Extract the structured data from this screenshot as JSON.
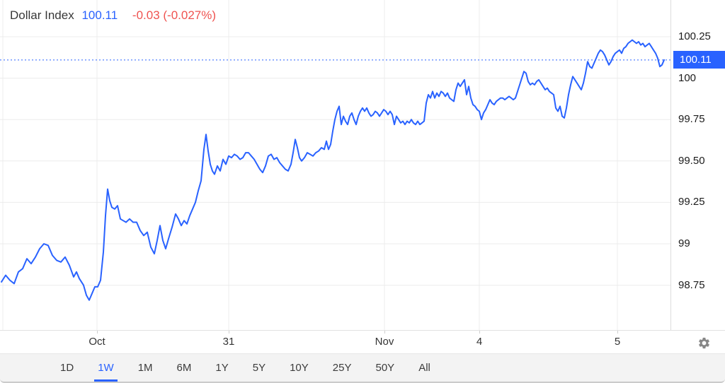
{
  "header": {
    "title": "Dollar Index",
    "price": "100.11",
    "change": "-0.03 (-0.027%)"
  },
  "colors": {
    "accent_blue": "#2962FF",
    "change_red": "#EF5350",
    "grid": "#ECECEC",
    "axis_border": "#DCDCDC",
    "label_dark": "#1C1C1C",
    "tab_strip_bg": "#F3F3F3"
  },
  "y_axis": {
    "labels": [
      "100.25",
      "100",
      "99.75",
      "99.50",
      "99.25",
      "99",
      "98.75"
    ],
    "values": [
      100.25,
      100,
      99.75,
      99.5,
      99.25,
      99,
      98.75
    ],
    "badge": {
      "text": "100.11",
      "value": 100.11
    }
  },
  "x_axis": {
    "labels": [
      "Oct",
      "31",
      "Nov",
      "4",
      "5"
    ],
    "positions": [
      137,
      323,
      543,
      677,
      872
    ],
    "extra_gridlines": [
      4
    ]
  },
  "toolbar": {
    "tabs": [
      "1D",
      "1W",
      "1M",
      "6M",
      "1Y",
      "5Y",
      "10Y",
      "25Y",
      "50Y",
      "All"
    ],
    "active": "1W"
  },
  "icons": {
    "settings": "gear-icon"
  },
  "chart_data": {
    "type": "line",
    "title": "Dollar Index",
    "ylabel": "",
    "xlabel": "",
    "ylim": [
      98.55,
      100.35
    ],
    "x_tick_labels": [
      "Oct",
      "31",
      "Nov",
      "4",
      "5"
    ],
    "grid": true,
    "legend": "none",
    "line_color": "#2962FF",
    "last_value": 100.11,
    "last_value_line": "dotted",
    "series": [
      {
        "name": "Dollar Index",
        "points": [
          [
            2,
            98.77
          ],
          [
            8,
            98.81
          ],
          [
            14,
            98.78
          ],
          [
            20,
            98.76
          ],
          [
            26,
            98.83
          ],
          [
            32,
            98.85
          ],
          [
            38,
            98.91
          ],
          [
            44,
            98.88
          ],
          [
            50,
            98.92
          ],
          [
            56,
            98.97
          ],
          [
            62,
            99.0
          ],
          [
            68,
            98.99
          ],
          [
            74,
            98.93
          ],
          [
            80,
            98.9
          ],
          [
            86,
            98.89
          ],
          [
            92,
            98.92
          ],
          [
            98,
            98.87
          ],
          [
            104,
            98.8
          ],
          [
            108,
            98.83
          ],
          [
            112,
            98.79
          ],
          [
            118,
            98.75
          ],
          [
            122,
            98.69
          ],
          [
            126,
            98.66
          ],
          [
            130,
            98.7
          ],
          [
            134,
            98.74
          ],
          [
            138,
            98.74
          ],
          [
            142,
            98.78
          ],
          [
            146,
            98.95
          ],
          [
            149,
            99.17
          ],
          [
            152,
            99.33
          ],
          [
            155,
            99.26
          ],
          [
            158,
            99.22
          ],
          [
            162,
            99.21
          ],
          [
            166,
            99.23
          ],
          [
            170,
            99.15
          ],
          [
            174,
            99.14
          ],
          [
            178,
            99.13
          ],
          [
            183,
            99.15
          ],
          [
            188,
            99.13
          ],
          [
            193,
            99.13
          ],
          [
            198,
            99.08
          ],
          [
            203,
            99.05
          ],
          [
            208,
            99.07
          ],
          [
            213,
            98.98
          ],
          [
            218,
            98.94
          ],
          [
            222,
            99.02
          ],
          [
            226,
            99.11
          ],
          [
            230,
            99.02
          ],
          [
            234,
            98.97
          ],
          [
            238,
            99.03
          ],
          [
            243,
            99.1
          ],
          [
            248,
            99.18
          ],
          [
            252,
            99.15
          ],
          [
            256,
            99.11
          ],
          [
            260,
            99.14
          ],
          [
            264,
            99.12
          ],
          [
            268,
            99.17
          ],
          [
            272,
            99.21
          ],
          [
            276,
            99.25
          ],
          [
            280,
            99.32
          ],
          [
            284,
            99.38
          ],
          [
            288,
            99.57
          ],
          [
            291,
            99.66
          ],
          [
            294,
            99.56
          ],
          [
            297,
            99.48
          ],
          [
            300,
            99.44
          ],
          [
            303,
            99.42
          ],
          [
            307,
            99.47
          ],
          [
            311,
            99.44
          ],
          [
            315,
            99.51
          ],
          [
            319,
            99.48
          ],
          [
            323,
            99.53
          ],
          [
            327,
            99.52
          ],
          [
            331,
            99.54
          ],
          [
            335,
            99.53
          ],
          [
            339,
            99.51
          ],
          [
            343,
            99.52
          ],
          [
            347,
            99.55
          ],
          [
            351,
            99.55
          ],
          [
            355,
            99.53
          ],
          [
            359,
            99.51
          ],
          [
            363,
            99.48
          ],
          [
            367,
            99.45
          ],
          [
            371,
            99.43
          ],
          [
            375,
            99.47
          ],
          [
            379,
            99.53
          ],
          [
            383,
            99.54
          ],
          [
            387,
            99.51
          ],
          [
            391,
            99.52
          ],
          [
            395,
            99.49
          ],
          [
            399,
            99.47
          ],
          [
            403,
            99.45
          ],
          [
            407,
            99.44
          ],
          [
            411,
            99.48
          ],
          [
            414,
            99.55
          ],
          [
            417,
            99.63
          ],
          [
            420,
            99.58
          ],
          [
            423,
            99.52
          ],
          [
            426,
            99.5
          ],
          [
            430,
            99.52
          ],
          [
            434,
            99.55
          ],
          [
            438,
            99.54
          ],
          [
            442,
            99.53
          ],
          [
            446,
            99.55
          ],
          [
            450,
            99.56
          ],
          [
            454,
            99.58
          ],
          [
            458,
            99.57
          ],
          [
            461,
            99.62
          ],
          [
            464,
            99.57
          ],
          [
            467,
            99.6
          ],
          [
            470,
            99.68
          ],
          [
            473,
            99.75
          ],
          [
            476,
            99.8
          ],
          [
            479,
            99.83
          ],
          [
            482,
            99.72
          ],
          [
            485,
            99.77
          ],
          [
            488,
            99.74
          ],
          [
            491,
            99.72
          ],
          [
            494,
            99.77
          ],
          [
            497,
            99.79
          ],
          [
            500,
            99.75
          ],
          [
            503,
            99.72
          ],
          [
            506,
            99.77
          ],
          [
            509,
            99.8
          ],
          [
            512,
            99.82
          ],
          [
            515,
            99.8
          ],
          [
            518,
            99.82
          ],
          [
            521,
            99.79
          ],
          [
            524,
            99.77
          ],
          [
            527,
            99.78
          ],
          [
            530,
            99.8
          ],
          [
            533,
            99.79
          ],
          [
            536,
            99.77
          ],
          [
            539,
            99.79
          ],
          [
            542,
            99.81
          ],
          [
            545,
            99.8
          ],
          [
            548,
            99.78
          ],
          [
            551,
            99.8
          ],
          [
            554,
            99.78
          ],
          [
            557,
            99.72
          ],
          [
            560,
            99.77
          ],
          [
            563,
            99.75
          ],
          [
            566,
            99.73
          ],
          [
            569,
            99.74
          ],
          [
            572,
            99.72
          ],
          [
            575,
            99.74
          ],
          [
            578,
            99.73
          ],
          [
            581,
            99.75
          ],
          [
            584,
            99.73
          ],
          [
            587,
            99.72
          ],
          [
            590,
            99.74
          ],
          [
            593,
            99.72
          ],
          [
            596,
            99.73
          ],
          [
            599,
            99.74
          ],
          [
            602,
            99.85
          ],
          [
            605,
            99.9
          ],
          [
            608,
            99.88
          ],
          [
            611,
            99.92
          ],
          [
            614,
            99.88
          ],
          [
            617,
            99.91
          ],
          [
            620,
            99.89
          ],
          [
            623,
            99.92
          ],
          [
            626,
            99.91
          ],
          [
            629,
            99.89
          ],
          [
            632,
            99.91
          ],
          [
            635,
            99.88
          ],
          [
            638,
            99.87
          ],
          [
            641,
            99.86
          ],
          [
            644,
            99.93
          ],
          [
            647,
            99.97
          ],
          [
            650,
            99.95
          ],
          [
            653,
            99.97
          ],
          [
            656,
            99.99
          ],
          [
            659,
            99.9
          ],
          [
            662,
            99.95
          ],
          [
            665,
            99.88
          ],
          [
            668,
            99.84
          ],
          [
            671,
            99.83
          ],
          [
            674,
            99.81
          ],
          [
            677,
            99.8
          ],
          [
            680,
            99.75
          ],
          [
            683,
            99.79
          ],
          [
            686,
            99.81
          ],
          [
            689,
            99.84
          ],
          [
            692,
            99.87
          ],
          [
            695,
            99.85
          ],
          [
            698,
            99.84
          ],
          [
            701,
            99.86
          ],
          [
            704,
            99.87
          ],
          [
            707,
            99.88
          ],
          [
            710,
            99.88
          ],
          [
            713,
            99.87
          ],
          [
            716,
            99.88
          ],
          [
            719,
            99.89
          ],
          [
            722,
            99.88
          ],
          [
            725,
            99.87
          ],
          [
            728,
            99.88
          ],
          [
            731,
            99.92
          ],
          [
            734,
            99.96
          ],
          [
            737,
            100.0
          ],
          [
            740,
            100.04
          ],
          [
            743,
            100.03
          ],
          [
            746,
            99.98
          ],
          [
            749,
            99.96
          ],
          [
            752,
            99.97
          ],
          [
            755,
            99.96
          ],
          [
            758,
            99.98
          ],
          [
            761,
            99.99
          ],
          [
            764,
            99.97
          ],
          [
            767,
            99.95
          ],
          [
            770,
            99.93
          ],
          [
            773,
            99.94
          ],
          [
            776,
            99.92
          ],
          [
            779,
            99.91
          ],
          [
            782,
            99.9
          ],
          [
            785,
            99.82
          ],
          [
            788,
            99.8
          ],
          [
            791,
            99.83
          ],
          [
            794,
            99.77
          ],
          [
            797,
            99.76
          ],
          [
            800,
            99.82
          ],
          [
            803,
            99.9
          ],
          [
            806,
            99.96
          ],
          [
            809,
            100.01
          ],
          [
            812,
            99.99
          ],
          [
            815,
            99.97
          ],
          [
            818,
            99.95
          ],
          [
            821,
            99.93
          ],
          [
            824,
            99.97
          ],
          [
            827,
            100.03
          ],
          [
            830,
            100.1
          ],
          [
            833,
            100.07
          ],
          [
            836,
            100.06
          ],
          [
            839,
            100.09
          ],
          [
            842,
            100.12
          ],
          [
            845,
            100.15
          ],
          [
            848,
            100.17
          ],
          [
            851,
            100.16
          ],
          [
            854,
            100.14
          ],
          [
            857,
            100.11
          ],
          [
            860,
            100.08
          ],
          [
            863,
            100.1
          ],
          [
            866,
            100.13
          ],
          [
            869,
            100.15
          ],
          [
            872,
            100.16
          ],
          [
            875,
            100.17
          ],
          [
            878,
            100.15
          ],
          [
            881,
            100.18
          ],
          [
            884,
            100.19
          ],
          [
            887,
            100.21
          ],
          [
            890,
            100.22
          ],
          [
            893,
            100.23
          ],
          [
            896,
            100.22
          ],
          [
            899,
            100.21
          ],
          [
            902,
            100.22
          ],
          [
            905,
            100.2
          ],
          [
            908,
            100.21
          ],
          [
            911,
            100.19
          ],
          [
            914,
            100.2
          ],
          [
            917,
            100.21
          ],
          [
            920,
            100.19
          ],
          [
            923,
            100.17
          ],
          [
            926,
            100.15
          ],
          [
            929,
            100.12
          ],
          [
            932,
            100.07
          ],
          [
            935,
            100.08
          ],
          [
            938,
            100.11
          ]
        ]
      }
    ]
  }
}
